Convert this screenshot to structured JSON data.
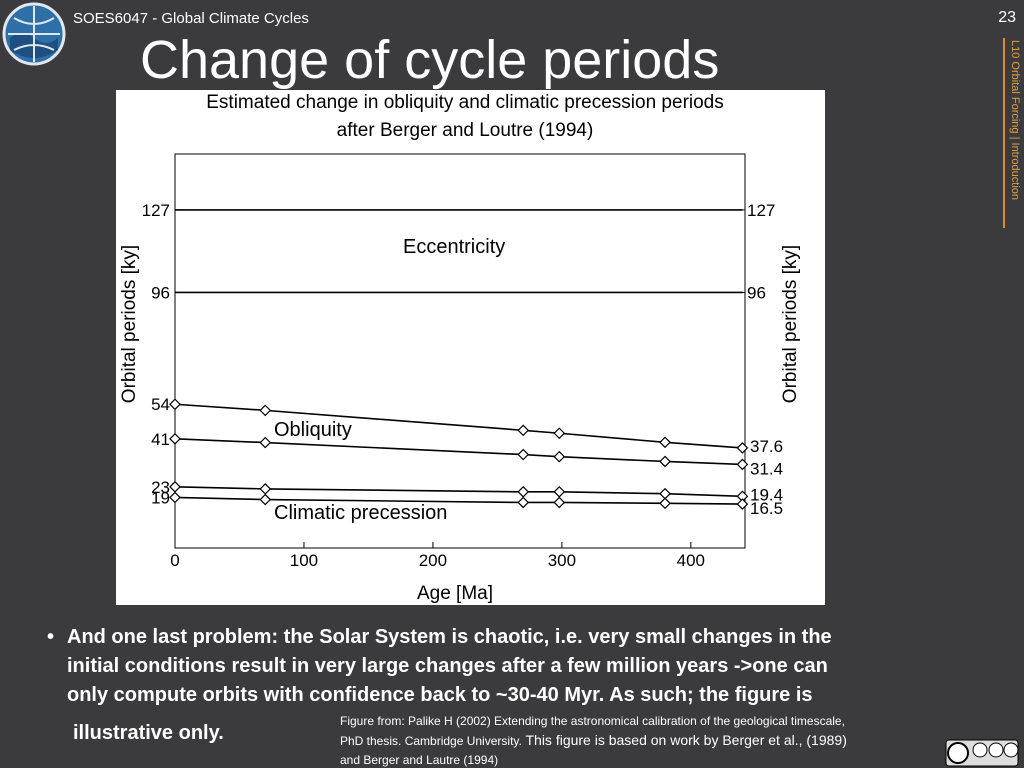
{
  "header": {
    "course": "SOES6047 - Global Climate Cycles",
    "page_number": "23",
    "side_label": "L10 Orbital Forcing | Introduction"
  },
  "title": "Change of cycle periods",
  "chart_data": {
    "type": "line",
    "title": [
      "Estimated change in obliquity and climatic precession periods",
      "after Berger and Loutre (1994)"
    ],
    "x_label": "Age [Ma]",
    "y_label": "Orbital periods [ky]",
    "y2_label": "Orbital periods [ky]",
    "x": [
      0,
      70,
      270,
      298,
      380,
      440
    ],
    "series": [
      {
        "color": "#000000",
        "marker": null,
        "values": [
          127,
          127,
          127,
          127,
          127,
          127
        ]
      },
      {
        "color": "#000000",
        "marker": null,
        "values": [
          96,
          96,
          96,
          96,
          96,
          96
        ]
      },
      {
        "color": "#000000",
        "marker": "diamond",
        "values": [
          54,
          51.7,
          44.2,
          43.1,
          39.7,
          37.6
        ]
      },
      {
        "color": "#000000",
        "marker": "diamond",
        "values": [
          41,
          39.6,
          35.1,
          34.3,
          32.5,
          31.4
        ]
      },
      {
        "color": "#000000",
        "marker": "diamond",
        "values": [
          23,
          22.2,
          21.1,
          21.1,
          20.4,
          19.4
        ]
      },
      {
        "color": "#000000",
        "marker": "diamond",
        "values": [
          19,
          18.2,
          17.1,
          17.1,
          16.8,
          16.5
        ]
      }
    ],
    "annotations": [
      "Eccentricity",
      "Obliquity",
      "Climatic precession"
    ],
    "xlim": [
      0,
      442
    ],
    "xticks": [
      0,
      100,
      200,
      300,
      400
    ],
    "ylim": [
      0,
      148
    ],
    "yticks": [
      19,
      23,
      41,
      54,
      96,
      127
    ],
    "y2lim": [
      0,
      148
    ],
    "y2ticks": [
      16.5,
      19.4,
      31.4,
      37.6,
      96,
      127
    ]
  },
  "bullet": {
    "lines": [
      "And one last problem: the Solar System is chaotic, i.e. very small changes in the",
      "initial conditions result in very large changes after a few million years ->one can",
      "only compute orbits with confidence back to ~30-40 Myr. As such; the figure is",
      "illustrative only."
    ]
  },
  "caption": {
    "line1": "Figure from: Palike H (2002) Extending the astronomical calibration of the geological timescale,",
    "line2a": "PhD thesis. Cambridge University.",
    "line2b": " This figure is based on work by Berger et al., (1989)",
    "line3": "and Berger and Lautre (1994)"
  }
}
